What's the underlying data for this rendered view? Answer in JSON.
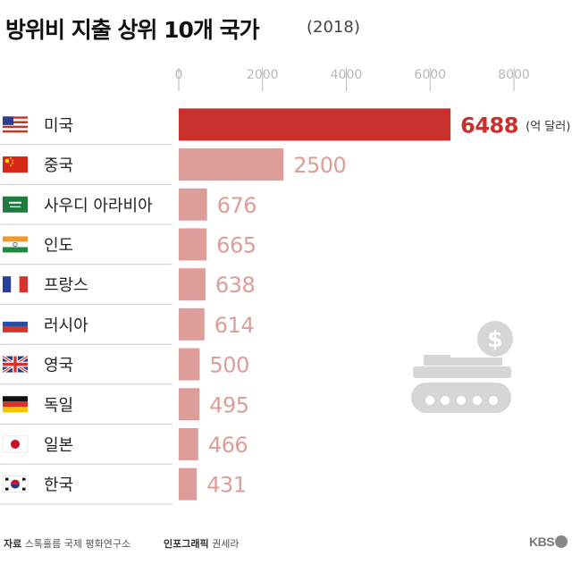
{
  "title": "방위비 지출 상위 10개 국가",
  "subtitle": "(2018)",
  "unit_label": "(억 달러)",
  "colors": {
    "highlight": "#c9302c",
    "bar": "#dd9d99",
    "axis_tick": "#b8b8b8",
    "divider": "#cccccc",
    "icon": "#d6d6d6"
  },
  "footer": {
    "source_label": "자료",
    "source_text": "스톡홀름 국제 평화연구소",
    "credit_label": "인포그래픽",
    "credit_text": "권세라",
    "logo_text": "KBS"
  },
  "illustration_icon": "tank-dollar-icon",
  "chart_data": {
    "type": "bar",
    "orientation": "horizontal",
    "title": "방위비 지출 상위 10개 국가",
    "xlim": [
      0,
      8000
    ],
    "xticks": [
      0,
      2000,
      4000,
      6000,
      8000
    ],
    "xtick_labels": [
      "0",
      "2000",
      "4000",
      "6000",
      "8000"
    ],
    "categories": [
      "미국",
      "중국",
      "사우디 아라비아",
      "인도",
      "프랑스",
      "러시아",
      "영국",
      "독일",
      "일본",
      "한국"
    ],
    "flags": [
      "us-flag-icon",
      "china-flag-icon",
      "saudi-flag-icon",
      "india-flag-icon",
      "france-flag-icon",
      "russia-flag-icon",
      "uk-flag-icon",
      "germany-flag-icon",
      "japan-flag-icon",
      "korea-flag-icon"
    ],
    "values": [
      6488,
      2500,
      676,
      665,
      638,
      614,
      500,
      495,
      466,
      431
    ],
    "value_labels": [
      "6488",
      "2500",
      "676",
      "665",
      "638",
      "614",
      "500",
      "495",
      "466",
      "431"
    ],
    "highlight_index": 0
  }
}
